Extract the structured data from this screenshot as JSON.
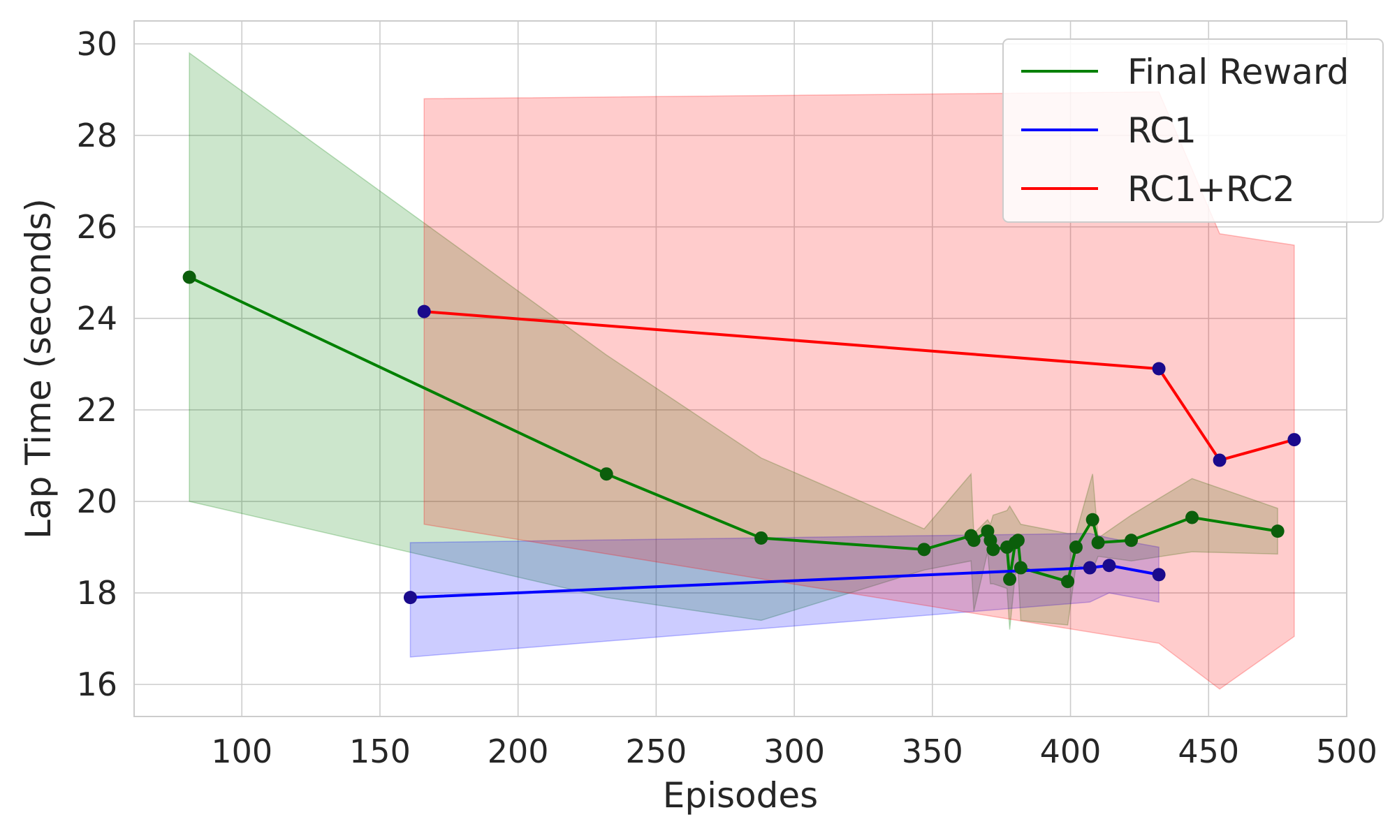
{
  "chart_data": {
    "type": "line",
    "title": "",
    "xlabel": "Episodes",
    "ylabel": "Lap Time (seconds)",
    "xlim": [
      61,
      500
    ],
    "ylim": [
      15.3,
      30.5
    ],
    "xticks": [
      100,
      150,
      200,
      250,
      300,
      350,
      400,
      450,
      500
    ],
    "yticks": [
      16,
      18,
      20,
      22,
      24,
      26,
      28,
      30
    ],
    "grid": true,
    "legend_position": "top-right",
    "series": [
      {
        "name": "Final Reward",
        "color": "#008000",
        "x": [
          81,
          232,
          288,
          347,
          364,
          365,
          370,
          371,
          372,
          377,
          378,
          380,
          381,
          382,
          399,
          402,
          408,
          410,
          422,
          444,
          475
        ],
        "y": [
          24.9,
          20.6,
          19.2,
          18.95,
          19.25,
          19.15,
          19.35,
          19.15,
          18.95,
          19.0,
          18.3,
          19.1,
          19.15,
          18.55,
          18.25,
          19.0,
          19.6,
          19.1,
          19.15,
          19.65,
          19.35
        ],
        "band_upper": [
          29.8,
          23.2,
          20.95,
          19.4,
          20.6,
          19.3,
          19.6,
          19.5,
          19.7,
          19.8,
          19.9,
          19.7,
          19.6,
          19.5,
          19.3,
          19.3,
          20.6,
          19.2,
          19.7,
          20.5,
          19.85
        ],
        "band_lower": [
          20.0,
          17.9,
          17.4,
          18.5,
          18.7,
          17.6,
          18.9,
          18.2,
          18.2,
          18.1,
          17.2,
          18.4,
          18.5,
          17.4,
          17.3,
          18.6,
          18.5,
          18.8,
          18.7,
          18.9,
          18.85
        ]
      },
      {
        "name": "RC1",
        "color": "#0000ff",
        "x": [
          161,
          407,
          414,
          432
        ],
        "y": [
          17.9,
          18.55,
          18.6,
          18.4
        ],
        "band_upper": [
          19.1,
          19.3,
          19.2,
          19.0
        ],
        "band_lower": [
          16.6,
          17.8,
          18.0,
          17.8
        ]
      },
      {
        "name": "RC1+RC2",
        "color": "#ff0000",
        "x": [
          166,
          432,
          454,
          481
        ],
        "y": [
          24.15,
          22.9,
          20.9,
          21.35
        ],
        "band_upper": [
          28.8,
          28.95,
          25.85,
          25.6
        ],
        "band_lower": [
          19.5,
          16.9,
          15.9,
          17.05
        ]
      }
    ]
  }
}
